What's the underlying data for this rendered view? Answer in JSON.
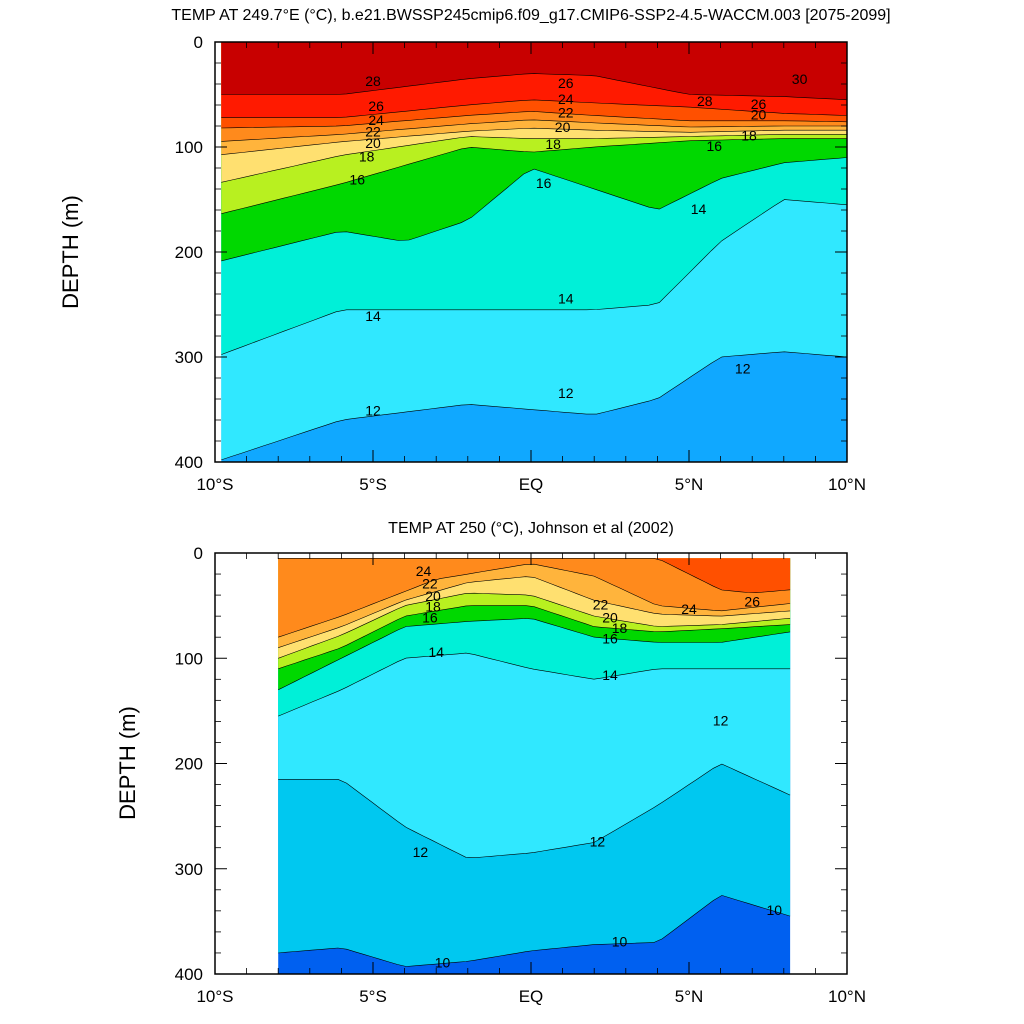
{
  "panels": [
    {
      "title": "TEMP AT 249.7°E (°C), b.e21.BWSSP245cmip6.f09_g17.CMIP6-SSP2-4.5-WACCM.003 [2075-2099]",
      "ylabel": "DEPTH (m)",
      "xticks": [
        "10°S",
        "5°S",
        "EQ",
        "5°N",
        "10°N"
      ],
      "yticks": [
        "0",
        "100",
        "200",
        "300",
        "400"
      ]
    },
    {
      "title": "TEMP AT 250 (°C), Johnson et al (2002)",
      "ylabel": "DEPTH (m)",
      "xticks": [
        "10°S",
        "5°S",
        "EQ",
        "5°N",
        "10°N"
      ],
      "yticks": [
        "0",
        "100",
        "200",
        "300",
        "400"
      ]
    }
  ],
  "chart_data": [
    {
      "type": "contour",
      "title": "TEMP AT 249.7°E (°C), b.e21.BWSSP245cmip6.f09_g17.CMIP6-SSP2-4.5-WACCM.003 [2075-2099]",
      "xlabel": "",
      "ylabel": "DEPTH (m)",
      "xlim": [
        -10,
        10
      ],
      "ylim": [
        400,
        0
      ],
      "x_ticks": [
        -10,
        -5,
        0,
        5,
        10
      ],
      "x_tick_labels": [
        "10°S",
        "5°S",
        "EQ",
        "5°N",
        "10°N"
      ],
      "y_ticks": [
        0,
        100,
        200,
        300,
        400
      ],
      "data_xlim": [
        -9.8,
        10
      ],
      "data_ylim": [
        0,
        400
      ],
      "levels": [
        {
          "temp": 30,
          "x": [
            -10,
            -6,
            -2,
            0,
            2,
            5,
            8,
            10
          ],
          "depth": [
            50,
            50,
            35,
            30,
            32,
            50,
            52,
            55
          ]
        },
        {
          "temp": 28,
          "x": [
            -10,
            -6,
            -2,
            0,
            2,
            5,
            8,
            10
          ],
          "depth": [
            72,
            72,
            60,
            55,
            58,
            62,
            68,
            70
          ]
        },
        {
          "temp": 26,
          "x": [
            -10,
            -6,
            -2,
            0,
            2,
            5,
            8,
            10
          ],
          "depth": [
            82,
            80,
            70,
            66,
            70,
            75,
            75,
            76
          ]
        },
        {
          "temp": 24,
          "x": [
            -10,
            -6,
            -2,
            0,
            2,
            5,
            8,
            10
          ],
          "depth": [
            95,
            88,
            78,
            74,
            77,
            81,
            80,
            80
          ]
        },
        {
          "temp": 22,
          "x": [
            -10,
            -6,
            -2,
            0,
            2,
            5,
            8,
            10
          ],
          "depth": [
            108,
            95,
            85,
            82,
            84,
            86,
            84,
            84
          ]
        },
        {
          "temp": 20,
          "x": [
            -10,
            -6,
            -2,
            0,
            2,
            5,
            8,
            10
          ],
          "depth": [
            135,
            108,
            90,
            92,
            92,
            90,
            88,
            88
          ]
        },
        {
          "temp": 18,
          "x": [
            -10,
            -6,
            -2,
            0,
            2,
            5,
            8,
            10
          ],
          "depth": [
            165,
            135,
            100,
            105,
            100,
            94,
            92,
            92
          ]
        },
        {
          "temp": 16,
          "x": [
            -10,
            -6,
            -4,
            -2,
            0,
            2,
            4,
            6,
            8,
            10
          ],
          "depth": [
            210,
            180,
            190,
            170,
            120,
            140,
            160,
            130,
            115,
            110
          ]
        },
        {
          "temp": 14,
          "x": [
            -10,
            -6,
            -2,
            0,
            2,
            4,
            6,
            8,
            10
          ],
          "depth": [
            300,
            255,
            255,
            255,
            255,
            250,
            190,
            150,
            155
          ]
        },
        {
          "temp": 12,
          "x": [
            -10,
            -6,
            -2,
            0,
            2,
            4,
            6,
            8,
            10
          ],
          "depth": [
            400,
            360,
            345,
            350,
            355,
            340,
            300,
            295,
            300
          ]
        }
      ],
      "labels": [
        {
          "text": "28",
          "x": -5.0,
          "depth": 38
        },
        {
          "text": "30",
          "x": 8.5,
          "depth": 36
        },
        {
          "text": "28",
          "x": 5.5,
          "depth": 57
        },
        {
          "text": "26",
          "x": -4.9,
          "depth": 62
        },
        {
          "text": "24",
          "x": -4.9,
          "depth": 75
        },
        {
          "text": "22",
          "x": -5.0,
          "depth": 86
        },
        {
          "text": "20",
          "x": -5.0,
          "depth": 97
        },
        {
          "text": "18",
          "x": -5.2,
          "depth": 110
        },
        {
          "text": "16",
          "x": -5.5,
          "depth": 132
        },
        {
          "text": "26",
          "x": 1.1,
          "depth": 40
        },
        {
          "text": "24",
          "x": 1.1,
          "depth": 55
        },
        {
          "text": "22",
          "x": 1.1,
          "depth": 68
        },
        {
          "text": "20",
          "x": 1.0,
          "depth": 82
        },
        {
          "text": "18",
          "x": 0.7,
          "depth": 98
        },
        {
          "text": "16",
          "x": 0.4,
          "depth": 135
        },
        {
          "text": "26",
          "x": 7.2,
          "depth": 60
        },
        {
          "text": "20",
          "x": 7.2,
          "depth": 70
        },
        {
          "text": "18",
          "x": 6.9,
          "depth": 90
        },
        {
          "text": "16",
          "x": 5.8,
          "depth": 100
        },
        {
          "text": "14",
          "x": 5.3,
          "depth": 160
        },
        {
          "text": "14",
          "x": -5.0,
          "depth": 262
        },
        {
          "text": "14",
          "x": 1.1,
          "depth": 245
        },
        {
          "text": "12",
          "x": -5.0,
          "depth": 352
        },
        {
          "text": "12",
          "x": 1.1,
          "depth": 335
        },
        {
          "text": "12",
          "x": 6.7,
          "depth": 312
        }
      ]
    },
    {
      "type": "contour",
      "title": "TEMP AT 250 (°C), Johnson et al (2002)",
      "xlabel": "",
      "ylabel": "DEPTH (m)",
      "xlim": [
        -10,
        10
      ],
      "ylim": [
        400,
        0
      ],
      "x_ticks": [
        -10,
        -5,
        0,
        5,
        10
      ],
      "x_tick_labels": [
        "10°S",
        "5°S",
        "EQ",
        "5°N",
        "10°N"
      ],
      "y_ticks": [
        0,
        100,
        200,
        300,
        400
      ],
      "data_xlim": [
        -8,
        8.2
      ],
      "data_ylim": [
        5,
        400
      ],
      "levels": [
        {
          "temp": 26,
          "x": [
            -8,
            4,
            5,
            6,
            7,
            8.2
          ],
          "depth": [
            5,
            5,
            20,
            35,
            38,
            35
          ]
        },
        {
          "temp": 24,
          "x": [
            -8,
            -6,
            -3,
            0,
            2,
            4,
            6,
            8.2
          ],
          "depth": [
            80,
            60,
            25,
            10,
            22,
            50,
            55,
            48
          ]
        },
        {
          "temp": 22,
          "x": [
            -8,
            -6,
            -4,
            -2,
            0,
            2,
            4,
            6,
            8.2
          ],
          "depth": [
            90,
            70,
            45,
            28,
            22,
            45,
            58,
            60,
            55
          ]
        },
        {
          "temp": 20,
          "x": [
            -8,
            -6,
            -4,
            -2,
            0,
            2,
            4,
            6,
            8.2
          ],
          "depth": [
            100,
            78,
            50,
            38,
            40,
            60,
            70,
            68,
            62
          ]
        },
        {
          "temp": 18,
          "x": [
            -8,
            -6,
            -4,
            -2,
            0,
            2,
            4,
            6,
            8.2
          ],
          "depth": [
            110,
            90,
            60,
            50,
            50,
            70,
            75,
            72,
            68
          ]
        },
        {
          "temp": 16,
          "x": [
            -8,
            -6,
            -4,
            -2,
            0,
            2,
            4,
            6,
            8.2
          ],
          "depth": [
            130,
            100,
            70,
            65,
            62,
            80,
            85,
            85,
            75
          ]
        },
        {
          "temp": 14,
          "x": [
            -8,
            -6,
            -4,
            -2,
            0,
            2,
            4,
            6,
            8.2
          ],
          "depth": [
            155,
            130,
            100,
            95,
            110,
            120,
            110,
            110,
            110
          ]
        },
        {
          "temp": 12,
          "x": [
            -8,
            -6,
            -4,
            -2,
            0,
            2,
            4,
            6,
            8.2
          ],
          "depth": [
            215,
            215,
            260,
            290,
            285,
            275,
            240,
            200,
            230
          ]
        },
        {
          "temp": 10,
          "x": [
            -8,
            -6,
            -4,
            -2,
            0,
            2,
            4,
            6,
            8.2
          ],
          "depth": [
            380,
            375,
            393,
            388,
            378,
            372,
            370,
            325,
            345
          ]
        }
      ],
      "labels": [
        {
          "text": "24",
          "x": -3.4,
          "depth": 18
        },
        {
          "text": "22",
          "x": -3.2,
          "depth": 30
        },
        {
          "text": "20",
          "x": -3.1,
          "depth": 42
        },
        {
          "text": "18",
          "x": -3.1,
          "depth": 52
        },
        {
          "text": "16",
          "x": -3.2,
          "depth": 62
        },
        {
          "text": "14",
          "x": -3.0,
          "depth": 95
        },
        {
          "text": "22",
          "x": 2.2,
          "depth": 50
        },
        {
          "text": "20",
          "x": 2.5,
          "depth": 62
        },
        {
          "text": "18",
          "x": 2.8,
          "depth": 72
        },
        {
          "text": "16",
          "x": 2.5,
          "depth": 82
        },
        {
          "text": "14",
          "x": 2.5,
          "depth": 117
        },
        {
          "text": "24",
          "x": 5.0,
          "depth": 54
        },
        {
          "text": "26",
          "x": 7.0,
          "depth": 47
        },
        {
          "text": "12",
          "x": 6.0,
          "depth": 160
        },
        {
          "text": "12",
          "x": -3.5,
          "depth": 285
        },
        {
          "text": "12",
          "x": 2.1,
          "depth": 275
        },
        {
          "text": "10",
          "x": -2.8,
          "depth": 390
        },
        {
          "text": "10",
          "x": 2.8,
          "depth": 370
        },
        {
          "text": "10",
          "x": 7.7,
          "depth": 340
        }
      ]
    }
  ]
}
